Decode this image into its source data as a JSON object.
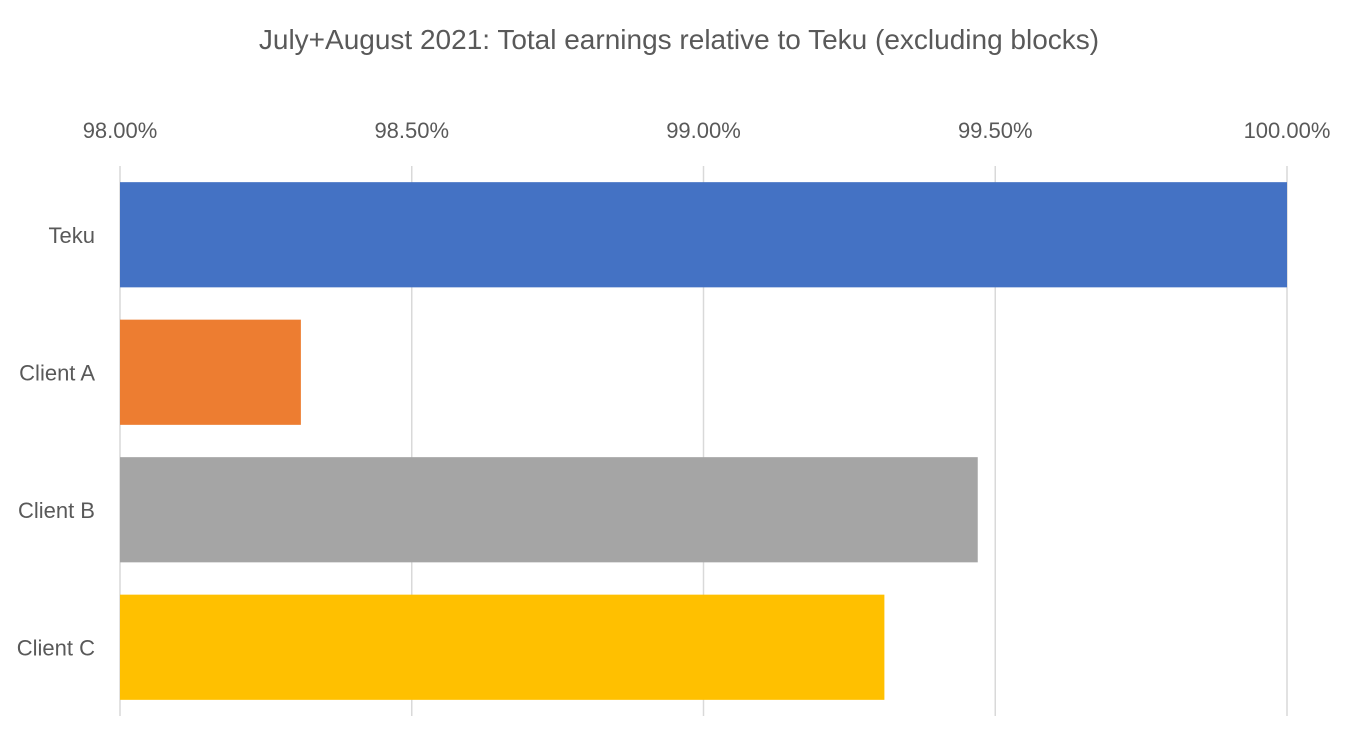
{
  "chart_data": {
    "type": "bar",
    "orientation": "horizontal",
    "title": "July+August 2021: Total earnings relative to Teku (excluding blocks)",
    "xlabel": "",
    "ylabel": "",
    "xlim": [
      98.0,
      100.0
    ],
    "x_ticks": [
      98.0,
      98.5,
      99.0,
      99.5,
      100.0
    ],
    "x_tick_labels": [
      "98.00%",
      "98.50%",
      "99.00%",
      "99.50%",
      "100.00%"
    ],
    "x_axis_position": "top",
    "grid": true,
    "legend": "none",
    "categories": [
      "Teku",
      "Client A",
      "Client B",
      "Client C"
    ],
    "values": [
      100.0,
      98.31,
      99.47,
      99.31
    ],
    "colors": [
      "#4472c4",
      "#ed7d31",
      "#a5a5a5",
      "#ffc000"
    ]
  }
}
